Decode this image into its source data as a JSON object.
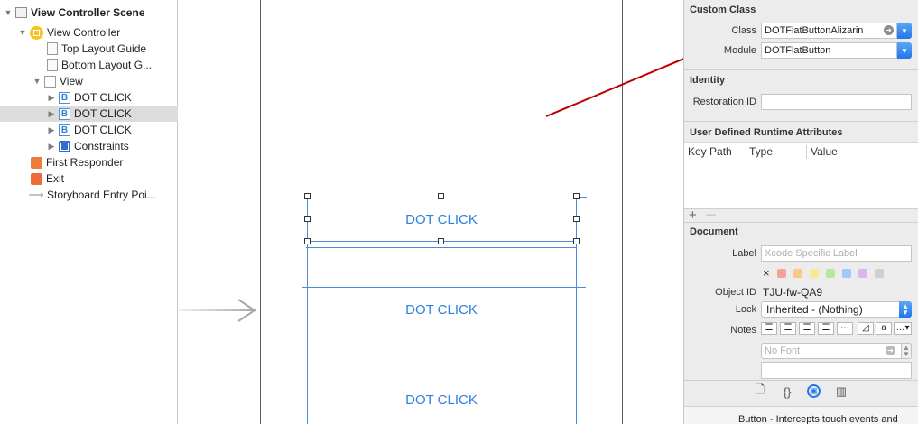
{
  "outline": {
    "scene": "View Controller Scene",
    "view_controller": "View Controller",
    "top_layout_guide": "Top Layout Guide",
    "bottom_layout_guide": "Bottom Layout G...",
    "view": "View",
    "button_icon_letter": "B",
    "buttons": [
      "DOT CLICK",
      "DOT CLICK",
      "DOT CLICK"
    ],
    "constraints": "Constraints",
    "first_responder": "First Responder",
    "exit": "Exit",
    "storyboard_entry": "Storyboard Entry Poi..."
  },
  "canvas": {
    "button_titles": [
      "DOT CLICK",
      "DOT CLICK",
      "DOT CLICK"
    ],
    "button_title_color": "#2f80e0",
    "annotation_arrow_color": "#c00000"
  },
  "inspector": {
    "custom_class": {
      "title": "Custom Class",
      "class_label": "Class",
      "class_value": "DOTFlatButtonAlizarin",
      "module_label": "Module",
      "module_value": "DOTFlatButton"
    },
    "identity": {
      "title": "Identity",
      "restoration_id_label": "Restoration ID",
      "restoration_id_value": ""
    },
    "runtime_attributes": {
      "title": "User Defined Runtime Attributes",
      "columns": [
        "Key Path",
        "Type",
        "Value"
      ],
      "add_symbol": "+",
      "remove_symbol": "—"
    },
    "document": {
      "title": "Document",
      "label_label": "Label",
      "label_placeholder": "Xcode Specific Label",
      "clear_symbol": "×",
      "color_swatches": [
        "#f4a39a",
        "#f7c98b",
        "#f3ec91",
        "#b9e89b",
        "#9fcaf6",
        "#dcb6ee",
        "#d0d0d0"
      ],
      "object_id_label": "Object ID",
      "object_id_value": "TJU-fw-QA9",
      "lock_label": "Lock",
      "lock_value": "Inherited - (Nothing)",
      "notes_label": "Notes",
      "notes_font_placeholder": "No Font"
    },
    "footer_text": "Button - Intercepts touch events and"
  }
}
